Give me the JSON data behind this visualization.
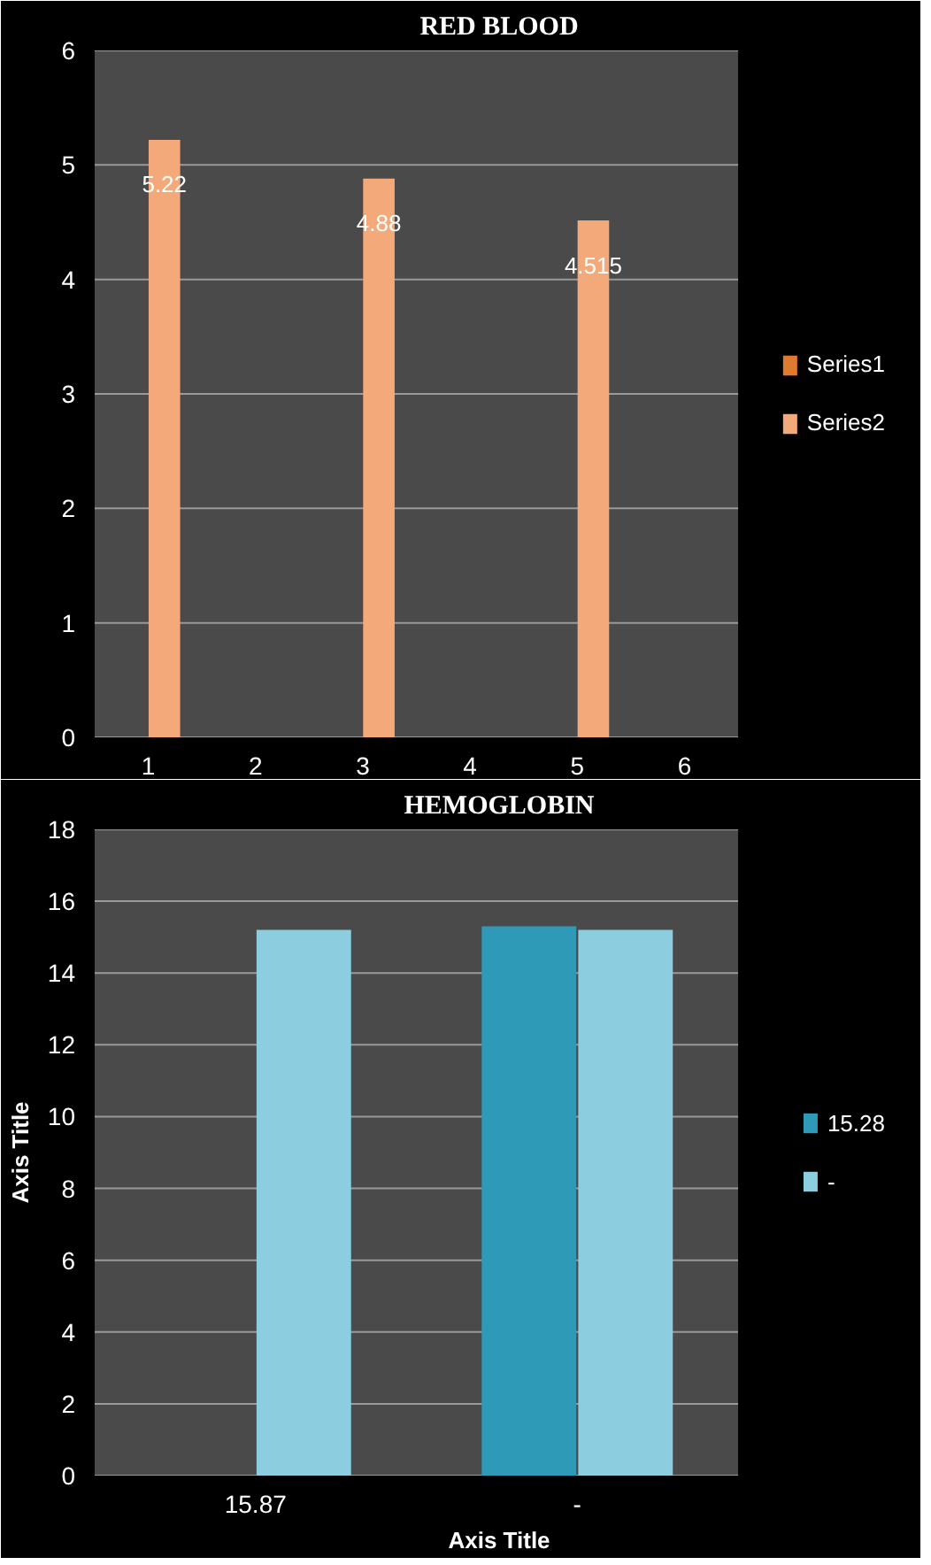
{
  "chart_data": [
    {
      "type": "bar",
      "title": "RED BLOOD",
      "categories": [
        "1",
        "2",
        "3",
        "4",
        "5",
        "6"
      ],
      "series": [
        {
          "name": "Series1",
          "color": "#e07a30",
          "values": [
            null,
            null,
            null,
            null,
            null,
            null
          ]
        },
        {
          "name": "Series2",
          "color": "#f4a97a",
          "values": [
            5.22,
            null,
            4.88,
            null,
            4.515,
            null
          ],
          "value_labels": [
            "5.22",
            null,
            "4.88",
            null,
            "4.515",
            null
          ]
        }
      ],
      "ylim": [
        0,
        6
      ],
      "yticks": [
        0,
        1,
        2,
        3,
        4,
        5,
        6
      ],
      "grid": "y",
      "legend": "right"
    },
    {
      "type": "bar",
      "title": "HEMOGLOBIN",
      "xlabel": "Axis Title",
      "ylabel": "Axis Title",
      "categories": [
        "15.87",
        "-"
      ],
      "series": [
        {
          "name": "15.28",
          "color": "#2e9ab8",
          "values": [
            null,
            15.3
          ]
        },
        {
          "name": "-",
          "color": "#8ccde0",
          "values": [
            15.2,
            15.2
          ]
        }
      ],
      "ylim": [
        0,
        18
      ],
      "yticks": [
        0,
        2,
        4,
        6,
        8,
        10,
        12,
        14,
        16,
        18
      ],
      "grid": "y",
      "legend": "right"
    }
  ]
}
